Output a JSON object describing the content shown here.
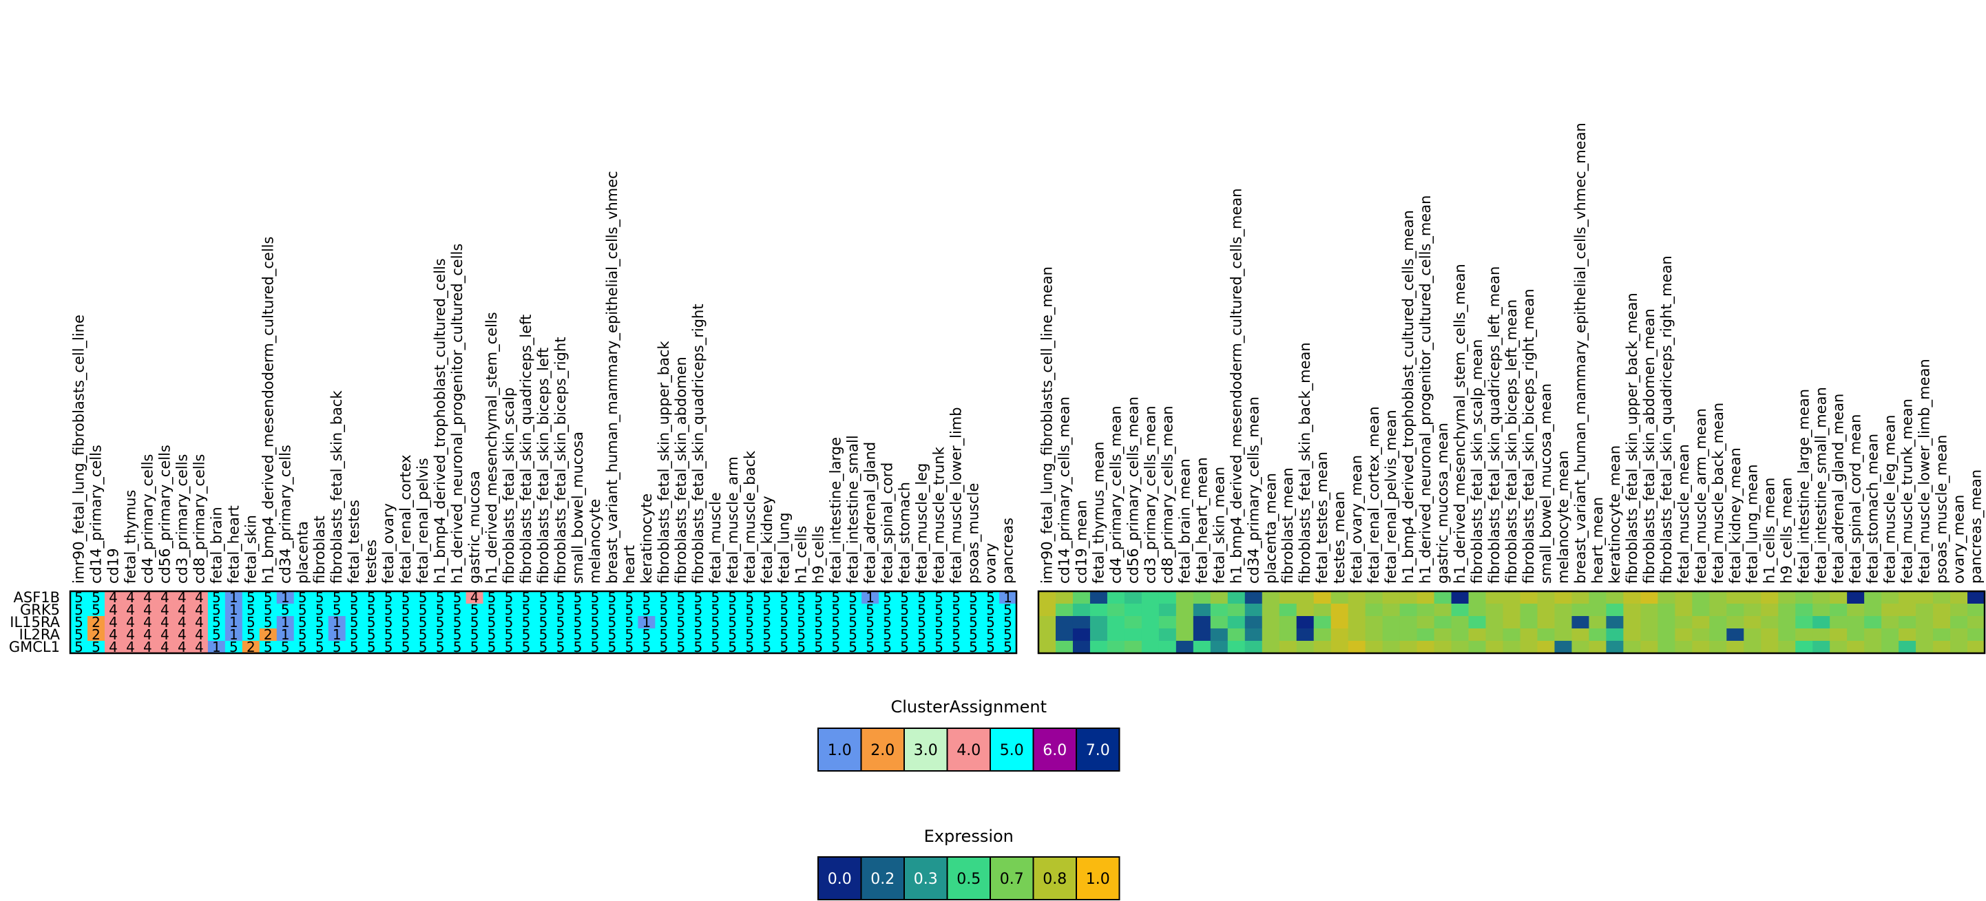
{
  "chart_data": [
    {
      "type": "heatmap",
      "name": "cluster-assignment-grid",
      "rows": [
        "ASF1B",
        "GRK5",
        "IL15RA",
        "IL2RA",
        "GMCL1"
      ],
      "columns": [
        "imr90_fetal_lung_fibroblasts_cell_line",
        "cd14_primary_cells",
        "cd19",
        "fetal_thymus",
        "cd4_primary_cells",
        "cd56_primary_cells",
        "cd3_primary_cells",
        "cd8_primary_cells",
        "fetal_brain",
        "fetal_heart",
        "fetal_skin",
        "h1_bmp4_derived_mesendoderm_cultured_cells",
        "cd34_primary_cells",
        "placenta",
        "fibroblast",
        "fibroblasts_fetal_skin_back",
        "fetal_testes",
        "testes",
        "fetal_ovary",
        "fetal_renal_cortex",
        "fetal_renal_pelvis",
        "h1_bmp4_derived_trophoblast_cultured_cells",
        "h1_derived_neuronal_progenitor_cultured_cells",
        "gastric_mucosa",
        "h1_derived_mesenchymal_stem_cells",
        "fibroblasts_fetal_skin_scalp",
        "fibroblasts_fetal_skin_quadriceps_left",
        "fibroblasts_fetal_skin_biceps_left",
        "fibroblasts_fetal_skin_biceps_right",
        "small_bowel_mucosa",
        "melanocyte",
        "breast_variant_human_mammary_epithelial_cells_vhmec",
        "heart",
        "keratinocyte",
        "fibroblasts_fetal_skin_upper_back",
        "fibroblasts_fetal_skin_abdomen",
        "fibroblasts_fetal_skin_quadriceps_right",
        "fetal_muscle",
        "fetal_muscle_arm",
        "fetal_muscle_back",
        "fetal_kidney",
        "fetal_lung",
        "h1_cells",
        "h9_cells",
        "fetal_intestine_large",
        "fetal_intestine_small",
        "fetal_adrenal_gland",
        "fetal_spinal_cord",
        "fetal_stomach",
        "fetal_muscle_leg",
        "fetal_muscle_trunk",
        "fetal_muscle_lower_limb",
        "psoas_muscle",
        "ovary",
        "pancreas"
      ],
      "values": [
        [
          5,
          5,
          4,
          4,
          4,
          4,
          4,
          4,
          5,
          1,
          5,
          5,
          1,
          5,
          5,
          5,
          5,
          5,
          5,
          5,
          5,
          5,
          5,
          4,
          5,
          5,
          5,
          5,
          5,
          5,
          5,
          5,
          5,
          5,
          5,
          5,
          5,
          5,
          5,
          5,
          5,
          5,
          5,
          5,
          5,
          5,
          1,
          5,
          5,
          5,
          5,
          5,
          5,
          5,
          1
        ],
        [
          5,
          5,
          4,
          4,
          4,
          4,
          4,
          4,
          5,
          1,
          5,
          5,
          5,
          5,
          5,
          5,
          5,
          5,
          5,
          5,
          5,
          5,
          5,
          5,
          5,
          5,
          5,
          5,
          5,
          5,
          5,
          5,
          5,
          5,
          5,
          5,
          5,
          5,
          5,
          5,
          5,
          5,
          5,
          5,
          5,
          5,
          5,
          5,
          5,
          5,
          5,
          5,
          5,
          5,
          5
        ],
        [
          5,
          2,
          4,
          4,
          4,
          4,
          4,
          4,
          5,
          1,
          5,
          5,
          1,
          5,
          5,
          1,
          5,
          5,
          5,
          5,
          5,
          5,
          5,
          5,
          5,
          5,
          5,
          5,
          5,
          5,
          5,
          5,
          5,
          1,
          5,
          5,
          5,
          5,
          5,
          5,
          5,
          5,
          5,
          5,
          5,
          5,
          5,
          5,
          5,
          5,
          5,
          5,
          5,
          5,
          5
        ],
        [
          5,
          2,
          4,
          4,
          4,
          4,
          4,
          4,
          5,
          1,
          5,
          2,
          1,
          5,
          5,
          1,
          5,
          5,
          5,
          5,
          5,
          5,
          5,
          5,
          5,
          5,
          5,
          5,
          5,
          5,
          5,
          5,
          5,
          5,
          5,
          5,
          5,
          5,
          5,
          5,
          5,
          5,
          5,
          5,
          5,
          5,
          5,
          5,
          5,
          5,
          5,
          5,
          5,
          5,
          5
        ],
        [
          5,
          5,
          4,
          4,
          4,
          4,
          4,
          4,
          1,
          5,
          2,
          5,
          5,
          5,
          5,
          5,
          5,
          5,
          5,
          5,
          5,
          5,
          5,
          5,
          5,
          5,
          5,
          5,
          5,
          5,
          5,
          5,
          5,
          5,
          5,
          5,
          5,
          5,
          5,
          5,
          5,
          5,
          5,
          5,
          5,
          5,
          5,
          5,
          5,
          5,
          5,
          5,
          5,
          5,
          5
        ]
      ]
    },
    {
      "type": "heatmap",
      "name": "expression-mean-grid",
      "rows": [
        "ASF1B",
        "GRK5",
        "IL15RA",
        "IL2RA",
        "GMCL1"
      ],
      "columns": [
        "imr90_fetal_lung_fibroblasts_cell_line_mean",
        "cd14_primary_cells_mean",
        "cd19_mean",
        "fetal_thymus_mean",
        "cd4_primary_cells_mean",
        "cd56_primary_cells_mean",
        "cd3_primary_cells_mean",
        "cd8_primary_cells_mean",
        "fetal_brain_mean",
        "fetal_heart_mean",
        "fetal_skin_mean",
        "h1_bmp4_derived_mesendoderm_cultured_cells_mean",
        "cd34_primary_cells_mean",
        "placenta_mean",
        "fibroblast_mean",
        "fibroblasts_fetal_skin_back_mean",
        "fetal_testes_mean",
        "testes_mean",
        "fetal_ovary_mean",
        "fetal_renal_cortex_mean",
        "fetal_renal_pelvis_mean",
        "h1_bmp4_derived_trophoblast_cultured_cells_mean",
        "h1_derived_neuronal_progenitor_cultured_cells_mean",
        "gastric_mucosa_mean",
        "h1_derived_mesenchymal_stem_cells_mean",
        "fibroblasts_fetal_skin_scalp_mean",
        "fibroblasts_fetal_skin_quadriceps_left_mean",
        "fibroblasts_fetal_skin_biceps_left_mean",
        "fibroblasts_fetal_skin_biceps_right_mean",
        "small_bowel_mucosa_mean",
        "melanocyte_mean",
        "breast_variant_human_mammary_epithelial_cells_vhmec_mean",
        "heart_mean",
        "keratinocyte_mean",
        "fibroblasts_fetal_skin_upper_back_mean",
        "fibroblasts_fetal_skin_abdomen_mean",
        "fibroblasts_fetal_skin_quadriceps_right_mean",
        "fetal_muscle_mean",
        "fetal_muscle_arm_mean",
        "fetal_muscle_back_mean",
        "fetal_kidney_mean",
        "fetal_lung_mean",
        "h1_cells_mean",
        "h9_cells_mean",
        "fetal_intestine_large_mean",
        "fetal_intestine_small_mean",
        "fetal_adrenal_gland_mean",
        "fetal_spinal_cord_mean",
        "fetal_stomach_mean",
        "fetal_muscle_leg_mean",
        "fetal_muscle_trunk_mean",
        "fetal_muscle_lower_limb_mean",
        "psoas_muscle_mean",
        "ovary_mean",
        "pancreas_mean"
      ],
      "values": [
        [
          0.85,
          0.8,
          0.6,
          0.1,
          0.5,
          0.45,
          0.5,
          0.5,
          0.7,
          0.65,
          0.75,
          0.45,
          0.1,
          0.75,
          0.8,
          0.8,
          0.9,
          0.75,
          0.8,
          0.75,
          0.8,
          0.8,
          0.85,
          0.6,
          0.0,
          0.7,
          0.8,
          0.8,
          0.85,
          0.8,
          0.85,
          0.8,
          0.7,
          0.75,
          0.85,
          0.9,
          0.75,
          0.8,
          0.7,
          0.75,
          0.8,
          0.8,
          0.85,
          0.75,
          0.7,
          0.75,
          0.8,
          0.0,
          0.7,
          0.75,
          0.8,
          0.8,
          0.75,
          0.8,
          0.0
        ],
        [
          0.85,
          0.6,
          0.45,
          0.5,
          0.55,
          0.5,
          0.5,
          0.45,
          0.7,
          0.3,
          0.55,
          0.6,
          0.35,
          0.75,
          0.6,
          0.8,
          0.75,
          0.9,
          0.8,
          0.7,
          0.75,
          0.65,
          0.7,
          0.75,
          0.55,
          0.7,
          0.75,
          0.8,
          0.7,
          0.8,
          0.75,
          0.7,
          0.7,
          0.55,
          0.8,
          0.75,
          0.7,
          0.8,
          0.7,
          0.75,
          0.7,
          0.75,
          0.8,
          0.7,
          0.6,
          0.7,
          0.65,
          0.75,
          0.7,
          0.8,
          0.8,
          0.75,
          0.8,
          0.75,
          0.7
        ],
        [
          0.8,
          0.1,
          0.1,
          0.4,
          0.5,
          0.55,
          0.5,
          0.55,
          0.7,
          0.05,
          0.6,
          0.45,
          0.2,
          0.75,
          0.7,
          0.0,
          0.6,
          0.9,
          0.8,
          0.75,
          0.7,
          0.7,
          0.75,
          0.65,
          0.7,
          0.55,
          0.75,
          0.8,
          0.7,
          0.8,
          0.75,
          0.1,
          0.75,
          0.2,
          0.8,
          0.75,
          0.7,
          0.75,
          0.8,
          0.7,
          0.75,
          0.8,
          0.75,
          0.7,
          0.55,
          0.45,
          0.7,
          0.7,
          0.6,
          0.75,
          0.7,
          0.75,
          0.8,
          0.7,
          0.75
        ],
        [
          0.8,
          0.1,
          0.0,
          0.4,
          0.5,
          0.5,
          0.5,
          0.45,
          0.7,
          0.05,
          0.25,
          0.6,
          0.25,
          0.75,
          0.7,
          0.05,
          0.7,
          0.85,
          0.8,
          0.75,
          0.7,
          0.7,
          0.65,
          0.75,
          0.7,
          0.8,
          0.75,
          0.7,
          0.8,
          0.7,
          0.75,
          0.8,
          0.65,
          0.45,
          0.8,
          0.75,
          0.7,
          0.8,
          0.75,
          0.7,
          0.1,
          0.75,
          0.8,
          0.7,
          0.75,
          0.75,
          0.8,
          0.7,
          0.75,
          0.7,
          0.8,
          0.75,
          0.7,
          0.75,
          0.7
        ],
        [
          0.8,
          0.6,
          0.05,
          0.5,
          0.55,
          0.6,
          0.5,
          0.5,
          0.1,
          0.5,
          0.3,
          0.5,
          0.45,
          0.75,
          0.8,
          0.75,
          0.8,
          0.85,
          0.9,
          0.8,
          0.75,
          0.8,
          0.85,
          0.8,
          0.75,
          0.7,
          0.8,
          0.75,
          0.8,
          0.85,
          0.2,
          0.75,
          0.8,
          0.3,
          0.75,
          0.8,
          0.7,
          0.75,
          0.8,
          0.75,
          0.8,
          0.75,
          0.8,
          0.75,
          0.5,
          0.45,
          0.75,
          0.8,
          0.75,
          0.7,
          0.45,
          0.75,
          0.8,
          0.75,
          0.8
        ]
      ]
    }
  ],
  "legends": {
    "cluster": {
      "title": "ClusterAssignment",
      "entries": [
        {
          "label": "1.0",
          "color": "#6495ED"
        },
        {
          "label": "2.0",
          "color": "#F79A3E"
        },
        {
          "label": "3.0",
          "color": "#C5F5C8"
        },
        {
          "label": "4.0",
          "color": "#F79496"
        },
        {
          "label": "5.0",
          "color": "#00FFFF"
        },
        {
          "label": "6.0",
          "color": "#990099"
        },
        {
          "label": "7.0",
          "color": "#002C8B"
        }
      ]
    },
    "expression": {
      "title": "Expression",
      "entries": [
        {
          "label": "0.0",
          "color": "#0A2684"
        },
        {
          "label": "0.2",
          "color": "#155F87"
        },
        {
          "label": "0.3",
          "color": "#22968F"
        },
        {
          "label": "0.5",
          "color": "#39D787"
        },
        {
          "label": "0.7",
          "color": "#77CF55"
        },
        {
          "label": "0.8",
          "color": "#B5C32D"
        },
        {
          "label": "1.0",
          "color": "#FABA0F"
        }
      ]
    }
  }
}
